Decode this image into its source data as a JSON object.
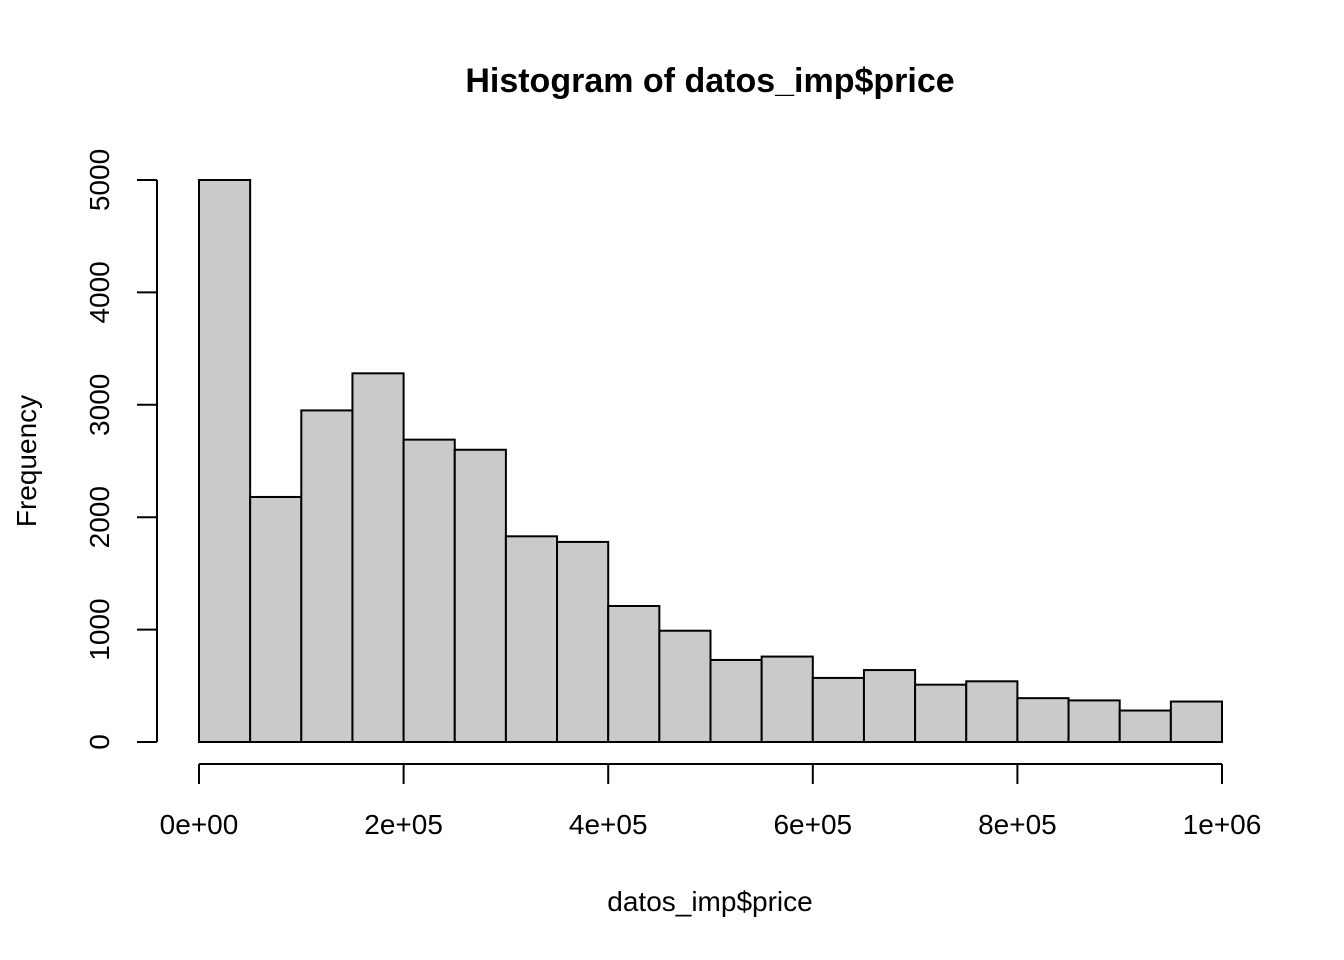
{
  "chart_data": {
    "type": "bar",
    "subtype": "histogram",
    "title": "Histogram of datos_imp$price",
    "xlabel": "datos_imp$price",
    "ylabel": "Frequency",
    "bin_width": 50000,
    "bins": [
      {
        "start": 0,
        "end": 50000,
        "count": 5000
      },
      {
        "start": 50000,
        "end": 100000,
        "count": 2180
      },
      {
        "start": 100000,
        "end": 150000,
        "count": 2950
      },
      {
        "start": 150000,
        "end": 200000,
        "count": 3280
      },
      {
        "start": 200000,
        "end": 250000,
        "count": 2690
      },
      {
        "start": 250000,
        "end": 300000,
        "count": 2600
      },
      {
        "start": 300000,
        "end": 350000,
        "count": 1830
      },
      {
        "start": 350000,
        "end": 400000,
        "count": 1780
      },
      {
        "start": 400000,
        "end": 450000,
        "count": 1210
      },
      {
        "start": 450000,
        "end": 500000,
        "count": 990
      },
      {
        "start": 500000,
        "end": 550000,
        "count": 730
      },
      {
        "start": 550000,
        "end": 600000,
        "count": 760
      },
      {
        "start": 600000,
        "end": 650000,
        "count": 570
      },
      {
        "start": 650000,
        "end": 700000,
        "count": 640
      },
      {
        "start": 700000,
        "end": 750000,
        "count": 510
      },
      {
        "start": 750000,
        "end": 800000,
        "count": 540
      },
      {
        "start": 800000,
        "end": 850000,
        "count": 390
      },
      {
        "start": 850000,
        "end": 900000,
        "count": 370
      },
      {
        "start": 900000,
        "end": 950000,
        "count": 280
      },
      {
        "start": 950000,
        "end": 1000000,
        "count": 360
      }
    ],
    "xlim": [
      0,
      1000000
    ],
    "ylim": [
      0,
      5000
    ],
    "x_ticks": [
      {
        "value": 0,
        "label": "0e+00"
      },
      {
        "value": 200000,
        "label": "2e+05"
      },
      {
        "value": 400000,
        "label": "4e+05"
      },
      {
        "value": 600000,
        "label": "6e+05"
      },
      {
        "value": 800000,
        "label": "8e+05"
      },
      {
        "value": 1000000,
        "label": "1e+06"
      }
    ],
    "y_ticks": [
      {
        "value": 0,
        "label": "0"
      },
      {
        "value": 1000,
        "label": "1000"
      },
      {
        "value": 2000,
        "label": "2000"
      },
      {
        "value": 3000,
        "label": "3000"
      },
      {
        "value": 4000,
        "label": "4000"
      },
      {
        "value": 5000,
        "label": "5000"
      }
    ],
    "grid": false,
    "legend": "none",
    "colors": {
      "bar_fill": "#cacaca",
      "bar_stroke": "#000000",
      "axis": "#000000",
      "text": "#000000"
    }
  }
}
